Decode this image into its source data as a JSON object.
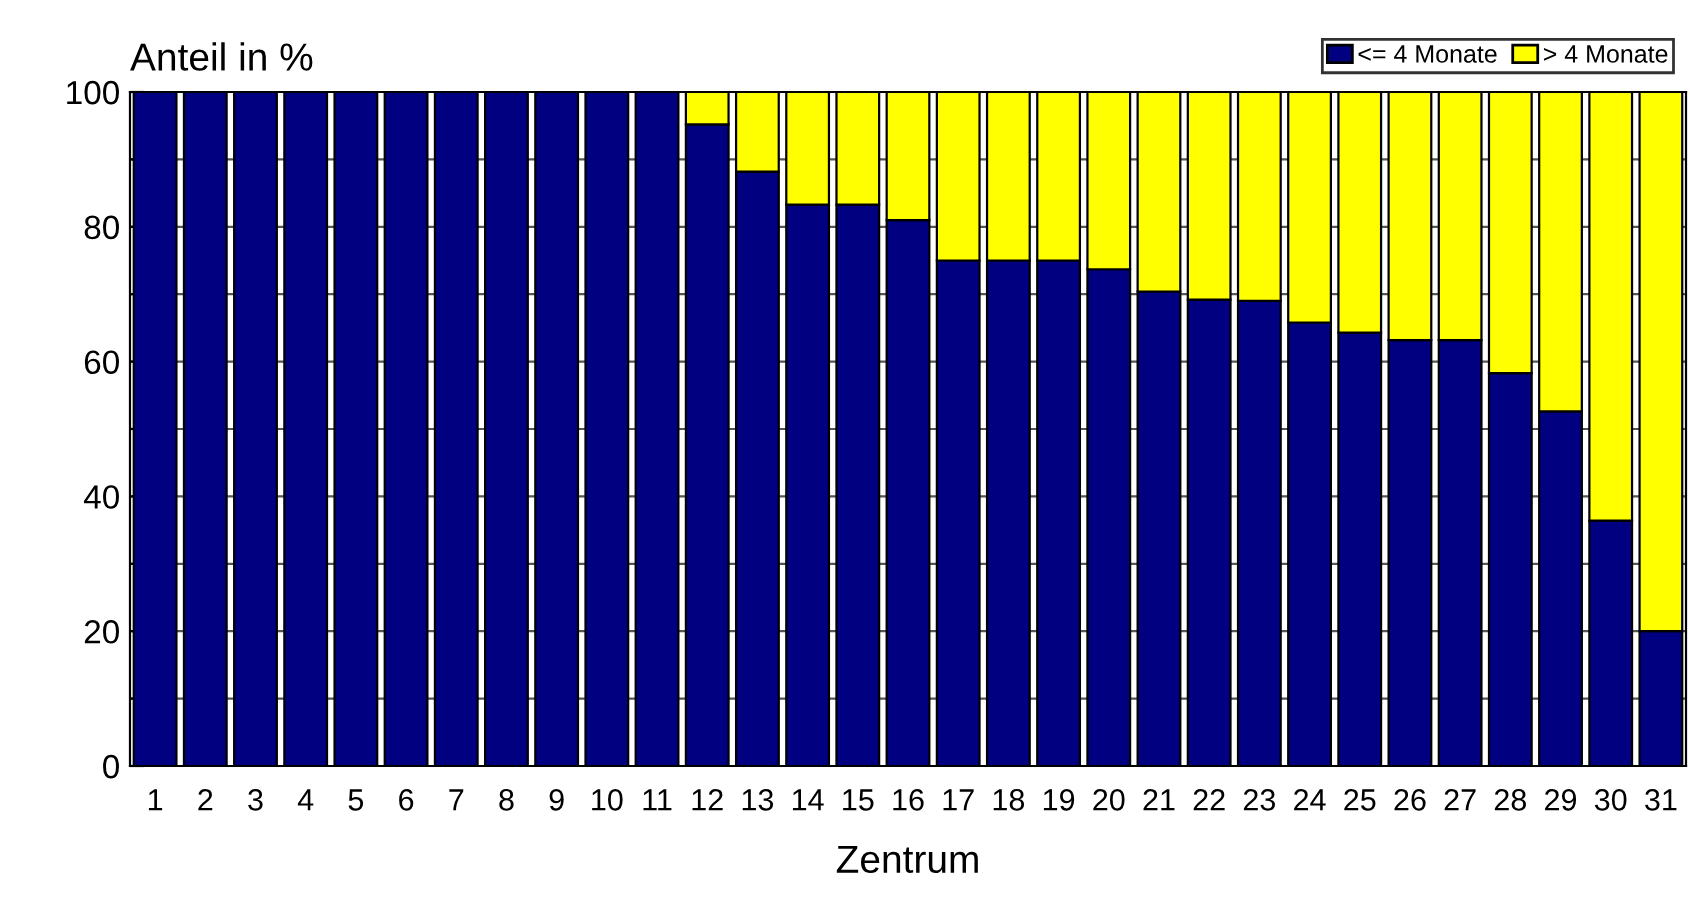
{
  "chart_data": {
    "type": "bar",
    "stacked": true,
    "ylabel": "Anteil in %",
    "xlabel": "Zentrum",
    "categories": [
      "1",
      "2",
      "3",
      "4",
      "5",
      "6",
      "7",
      "8",
      "9",
      "10",
      "11",
      "12",
      "13",
      "14",
      "15",
      "16",
      "17",
      "18",
      "19",
      "20",
      "21",
      "22",
      "23",
      "24",
      "25",
      "26",
      "27",
      "28",
      "29",
      "30",
      "31"
    ],
    "series": [
      {
        "name": "<= 4 Monate",
        "color": "#000080",
        "values": [
          100,
          100,
          100,
          100,
          100,
          100,
          100,
          100,
          100,
          100,
          100,
          95.2,
          88.2,
          83.3,
          83.3,
          81,
          75,
          75,
          75,
          73.7,
          70.4,
          69.2,
          69,
          65.8,
          64.3,
          63.2,
          63.2,
          58.3,
          52.6,
          36.4,
          20
        ]
      },
      {
        "name": "> 4 Monate",
        "color": "#ffff00",
        "values": [
          0,
          0,
          0,
          0,
          0,
          0,
          0,
          0,
          0,
          0,
          0,
          4.8,
          11.8,
          16.7,
          16.7,
          19,
          25,
          25,
          25,
          26.3,
          29.6,
          30.8,
          31,
          34.2,
          35.7,
          36.8,
          36.8,
          41.7,
          47.4,
          63.6,
          80
        ]
      }
    ],
    "ylim": [
      0,
      100
    ],
    "yticks": [
      0,
      {
        "value": 10,
        "label": null
      },
      20,
      {
        "value": 30,
        "label": null
      },
      40,
      {
        "value": 50,
        "label": null
      },
      60,
      {
        "value": 70,
        "label": null
      },
      80,
      {
        "value": 90,
        "label": null
      },
      100
    ],
    "grid": "y",
    "legend": "top right"
  }
}
